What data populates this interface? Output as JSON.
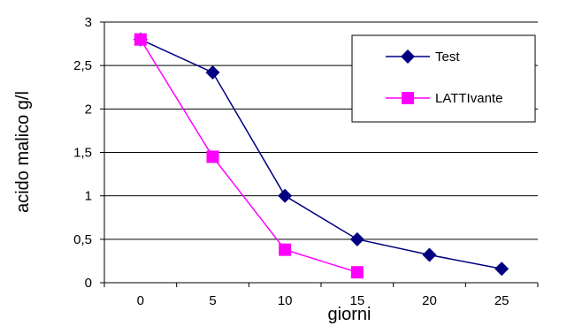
{
  "chart_data": {
    "type": "line",
    "xlabel": "giorni",
    "ylabel": "acido malico g/l",
    "x_ticks": [
      "0",
      "5",
      "10",
      "15",
      "20",
      "25"
    ],
    "y_ticks": [
      "0",
      "0,5",
      "1",
      "1,5",
      "2",
      "2,5",
      "3"
    ],
    "ylim": [
      0,
      3
    ],
    "xlim": [
      -2.5,
      27.5
    ],
    "grid": "horizontal",
    "legend_position": "top-right",
    "series": [
      {
        "name": "Test",
        "color": "#000080",
        "marker": "diamond",
        "x": [
          0,
          5,
          10,
          15,
          20,
          25
        ],
        "y": [
          2.8,
          2.42,
          1.0,
          0.5,
          0.32,
          0.16
        ]
      },
      {
        "name": "LATTIvante",
        "color": "#FF00FF",
        "marker": "square",
        "x": [
          0,
          5,
          10,
          15
        ],
        "y": [
          2.8,
          1.45,
          0.38,
          0.12
        ]
      }
    ]
  }
}
